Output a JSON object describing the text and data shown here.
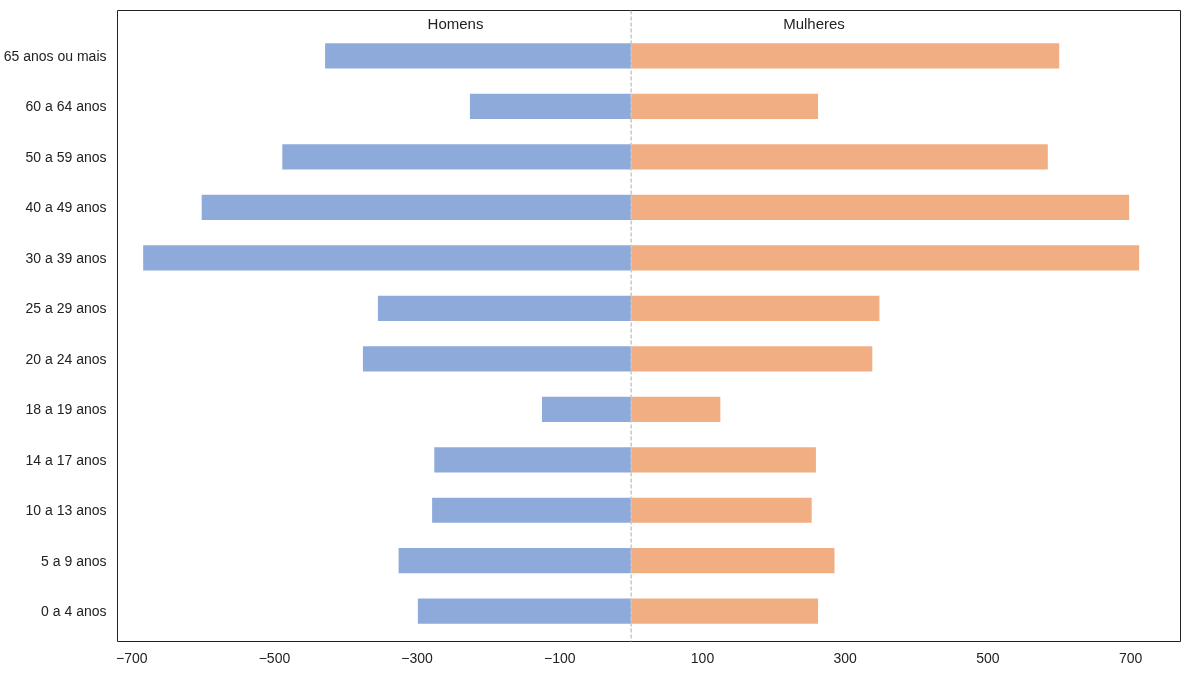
{
  "chart_data": {
    "type": "bar",
    "orientation": "horizontal",
    "stacked": true,
    "categories": [
      "65 anos ou mais",
      "60 a 64 anos",
      "50 a 59 anos",
      "40 a 49 anos",
      "30 a 39 anos",
      "25 a 29 anos",
      "20 a 24 anos",
      "18 a 19 anos",
      "14 a 17 anos",
      "10 a 13 anos",
      "5 a 9 anos",
      "0 a 4 anos"
    ],
    "series": [
      {
        "name": "Homens",
        "color": "#8eaadb",
        "values": [
          -429,
          -226,
          -489,
          -602,
          -684,
          -355,
          -376,
          -125,
          -276,
          -279,
          -326,
          -299
        ]
      },
      {
        "name": "Mulheres",
        "color": "#f0ae82",
        "values": [
          600,
          262,
          584,
          698,
          712,
          348,
          338,
          125,
          259,
          253,
          285,
          262
        ]
      }
    ],
    "xlim": [
      -720,
      770
    ],
    "xticks": [
      -700,
      -500,
      -300,
      -100,
      100,
      300,
      500,
      700
    ],
    "ref_lines": [
      {
        "axis": "x",
        "value": 0,
        "label": null,
        "color": "#c8c8c8",
        "line_style": "dashed"
      }
    ],
    "grid": false
  }
}
